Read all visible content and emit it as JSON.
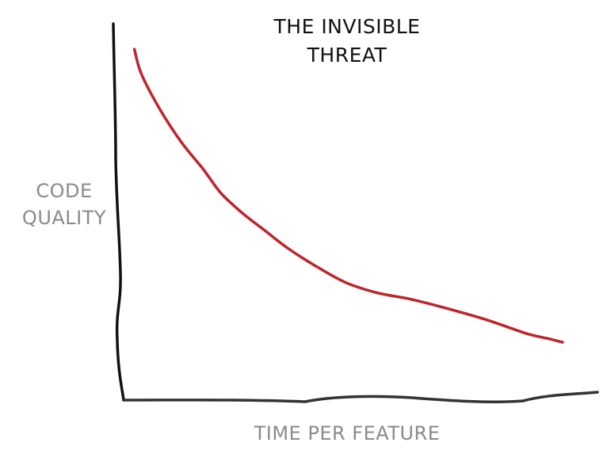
{
  "chart_data": {
    "type": "line",
    "title_lines": [
      "THE INVISIBLE",
      "THREAT"
    ],
    "xlabel": "TIME PER FEATURE",
    "ylabel_lines": [
      "CODE",
      "QUALITY"
    ],
    "xlim": [
      0,
      100
    ],
    "ylim": [
      0,
      100
    ],
    "grid": false,
    "legend": "none",
    "series": [
      {
        "color": "#c0242b",
        "x": [
          3.5,
          5,
          9,
          14,
          19,
          23,
          28,
          33,
          38,
          44,
          51,
          58,
          66,
          75,
          83,
          92,
          97,
          100
        ],
        "y": [
          100,
          93,
          83,
          73,
          65,
          58,
          52,
          47,
          42,
          37,
          32,
          29,
          27,
          24,
          21,
          17,
          15.5,
          14.5
        ]
      }
    ]
  }
}
